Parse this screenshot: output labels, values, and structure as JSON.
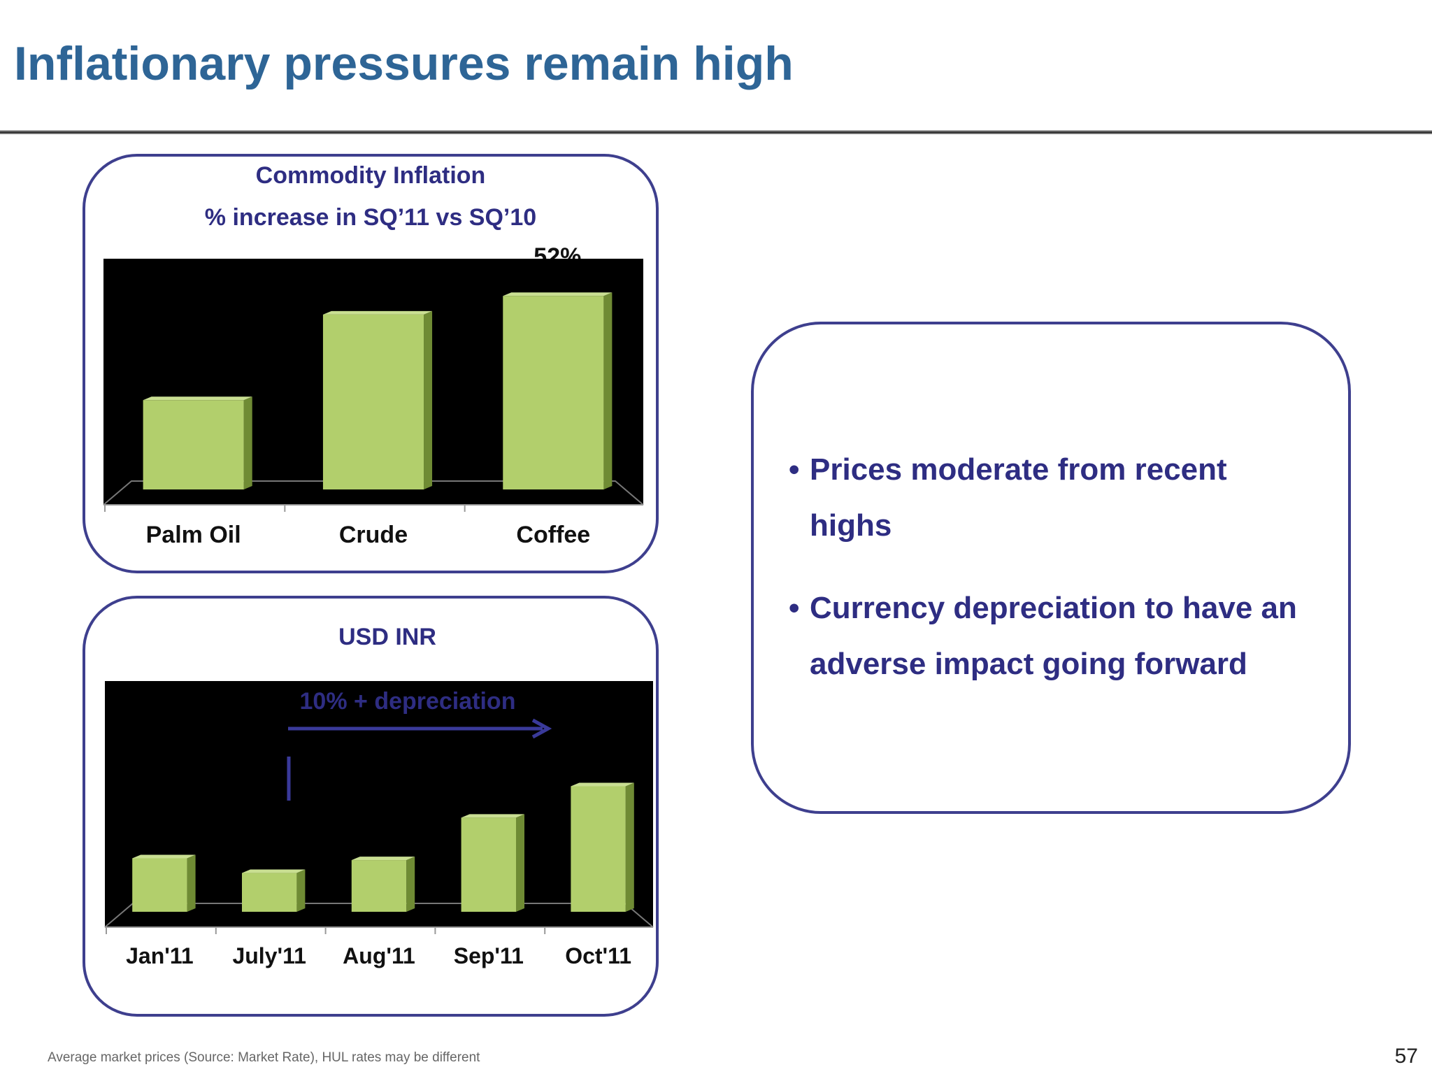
{
  "slide": {
    "title": "Inflationary pressures remain high",
    "footnote": "Average market prices (Source: Market Rate), HUL  rates may be different",
    "page_number": "57"
  },
  "colors": {
    "title": "#2e6596",
    "panel_border": "#3e3f8e",
    "text_navy": "#2e2d82",
    "bar_fill": "#b2cf6c",
    "plot_background": "#000000"
  },
  "bullets": [
    {
      "marker": "•",
      "text": "Prices moderate from recent highs"
    },
    {
      "marker": "•",
      "text": "Currency depreciation to have an adverse impact going forward"
    }
  ],
  "chart_data": [
    {
      "type": "bar",
      "title": "Commodity Inflation",
      "subtitle": "% increase in SQ’11 vs SQ’10",
      "categories": [
        "Palm Oil",
        "Crude",
        "Coffee"
      ],
      "values": [
        24,
        47,
        52
      ],
      "data_labels": [
        "",
        "",
        "52%"
      ],
      "ylim": [
        0,
        62
      ],
      "grid": false,
      "legend": "none"
    },
    {
      "type": "bar",
      "title": "USD INR",
      "categories": [
        "Jan'11",
        "July'11",
        "Aug'11",
        "Sep'11",
        "Oct'11"
      ],
      "values": [
        45.4,
        44.6,
        45.3,
        47.6,
        49.3
      ],
      "ylim": [
        42.5,
        55
      ],
      "annotation": "10% + depreciation",
      "grid": false,
      "legend": "none"
    }
  ]
}
